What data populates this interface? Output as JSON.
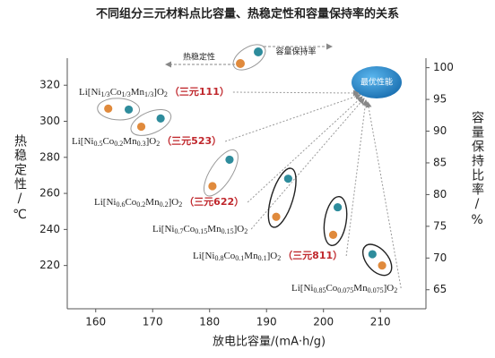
{
  "chart_data": {
    "type": "scatter",
    "title": "不同组分三元材料点比容量、热稳定性和容量保持率的关系",
    "x_label": "放电比容量/(mA·h/g)",
    "y_label": "热稳定性/℃",
    "y2_label": "容量保持比率/%",
    "xlim": [
      155,
      218
    ],
    "xticks": [
      160,
      170,
      180,
      190,
      200,
      210
    ],
    "ylim": [
      196,
      335
    ],
    "yticks": [
      220,
      240,
      260,
      280,
      300,
      320
    ],
    "y2lim": [
      62,
      101.5
    ],
    "y2ticks": [
      65,
      70,
      75,
      80,
      85,
      90,
      95,
      100
    ],
    "series": [
      {
        "name": "热稳定性",
        "color": "#e08a3c",
        "x": [
          162.2,
          168,
          180.5,
          191.7,
          201.7,
          210.3
        ],
        "values": [
          307,
          297,
          264,
          247,
          237,
          220
        ]
      },
      {
        "name": "容量保持率",
        "color": "#2e8c9c",
        "axis": "y2",
        "x": [
          165.8,
          171.4,
          183.5,
          193.8,
          202.5,
          208.6
        ],
        "values": [
          93.4,
          92,
          85.5,
          82.5,
          78,
          70.6
        ]
      }
    ],
    "target_label": "最优性能",
    "materials": [
      {
        "formula": "Li[Ni1/3Co1/3Mn1/3]O2",
        "tag": "（三元111）"
      },
      {
        "formula": "Li[Ni0.5Co0.2Mn0.3]O2",
        "tag": "（三元523）"
      },
      {
        "formula": "Li[Ni0.6Co0.2Mn0.2]O2",
        "tag": "（三元622）"
      },
      {
        "formula": "Li[Ni0.7Co0.15Mn0.15]O2"
      },
      {
        "formula": "Li[Ni0.8Co0.1Mn0.1]O2",
        "tag": "（三元811）"
      },
      {
        "formula": "Li[Ni0.85Co0.075Mn0.075]O2"
      }
    ]
  }
}
